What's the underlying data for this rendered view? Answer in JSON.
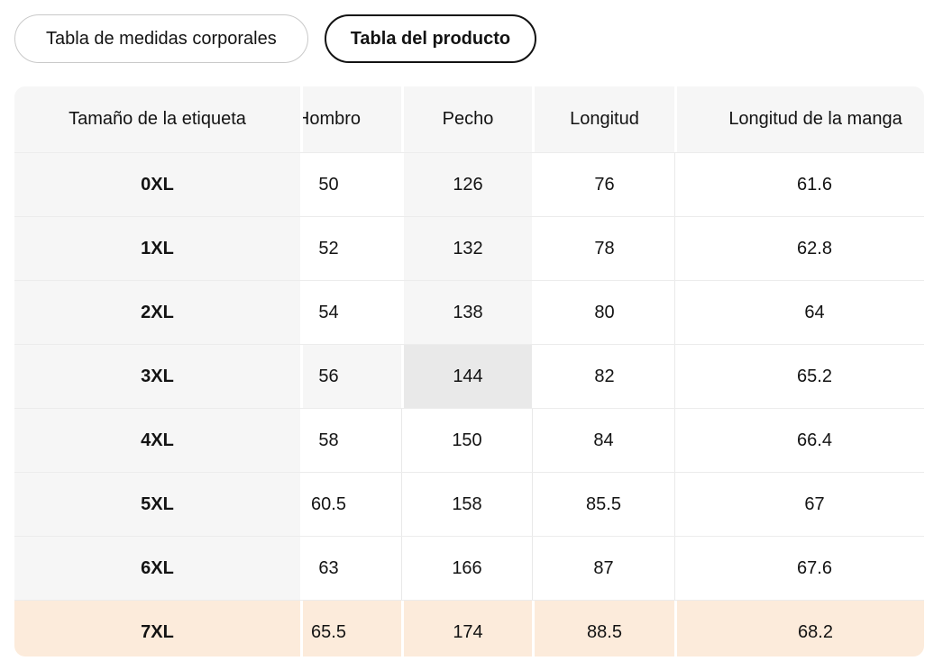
{
  "page": {
    "background": "#ffffff"
  },
  "tabs": {
    "body_measurements_label": "Tabla de medidas corporales",
    "product_table_label": "Tabla del producto",
    "selected": "Tabla del producto"
  },
  "size_table": {
    "columns": [
      "Tamaño de la etiqueta",
      "Hombro",
      "Pecho",
      "Longitud",
      "Longitud de la manga"
    ],
    "rows": [
      {
        "label": "0XL",
        "values": [
          "50",
          "126",
          "76",
          "61.6"
        ]
      },
      {
        "label": "1XL",
        "values": [
          "52",
          "132",
          "78",
          "62.8"
        ]
      },
      {
        "label": "2XL",
        "values": [
          "54",
          "138",
          "80",
          "64"
        ]
      },
      {
        "label": "3XL",
        "values": [
          "56",
          "144",
          "82",
          "65.2"
        ]
      },
      {
        "label": "4XL",
        "values": [
          "58",
          "150",
          "84",
          "66.4"
        ]
      },
      {
        "label": "5XL",
        "values": [
          "60.5",
          "158",
          "85.5",
          "67"
        ]
      },
      {
        "label": "6XL",
        "values": [
          "63",
          "166",
          "87",
          "67.6"
        ]
      },
      {
        "label": "7XL",
        "values": [
          "65.5",
          "174",
          "88.5",
          "68.2"
        ]
      }
    ],
    "selected_size": "7XL",
    "highlighted_cell": {
      "row": "3XL",
      "column": "Pecho"
    },
    "colors": {
      "header_bg": "#f6f6f6",
      "column_highlight_bg": "#f6f6f6",
      "highlighted_cell_bg": "#e9e9e9",
      "selected_row_bg": "#fcebdb"
    }
  }
}
